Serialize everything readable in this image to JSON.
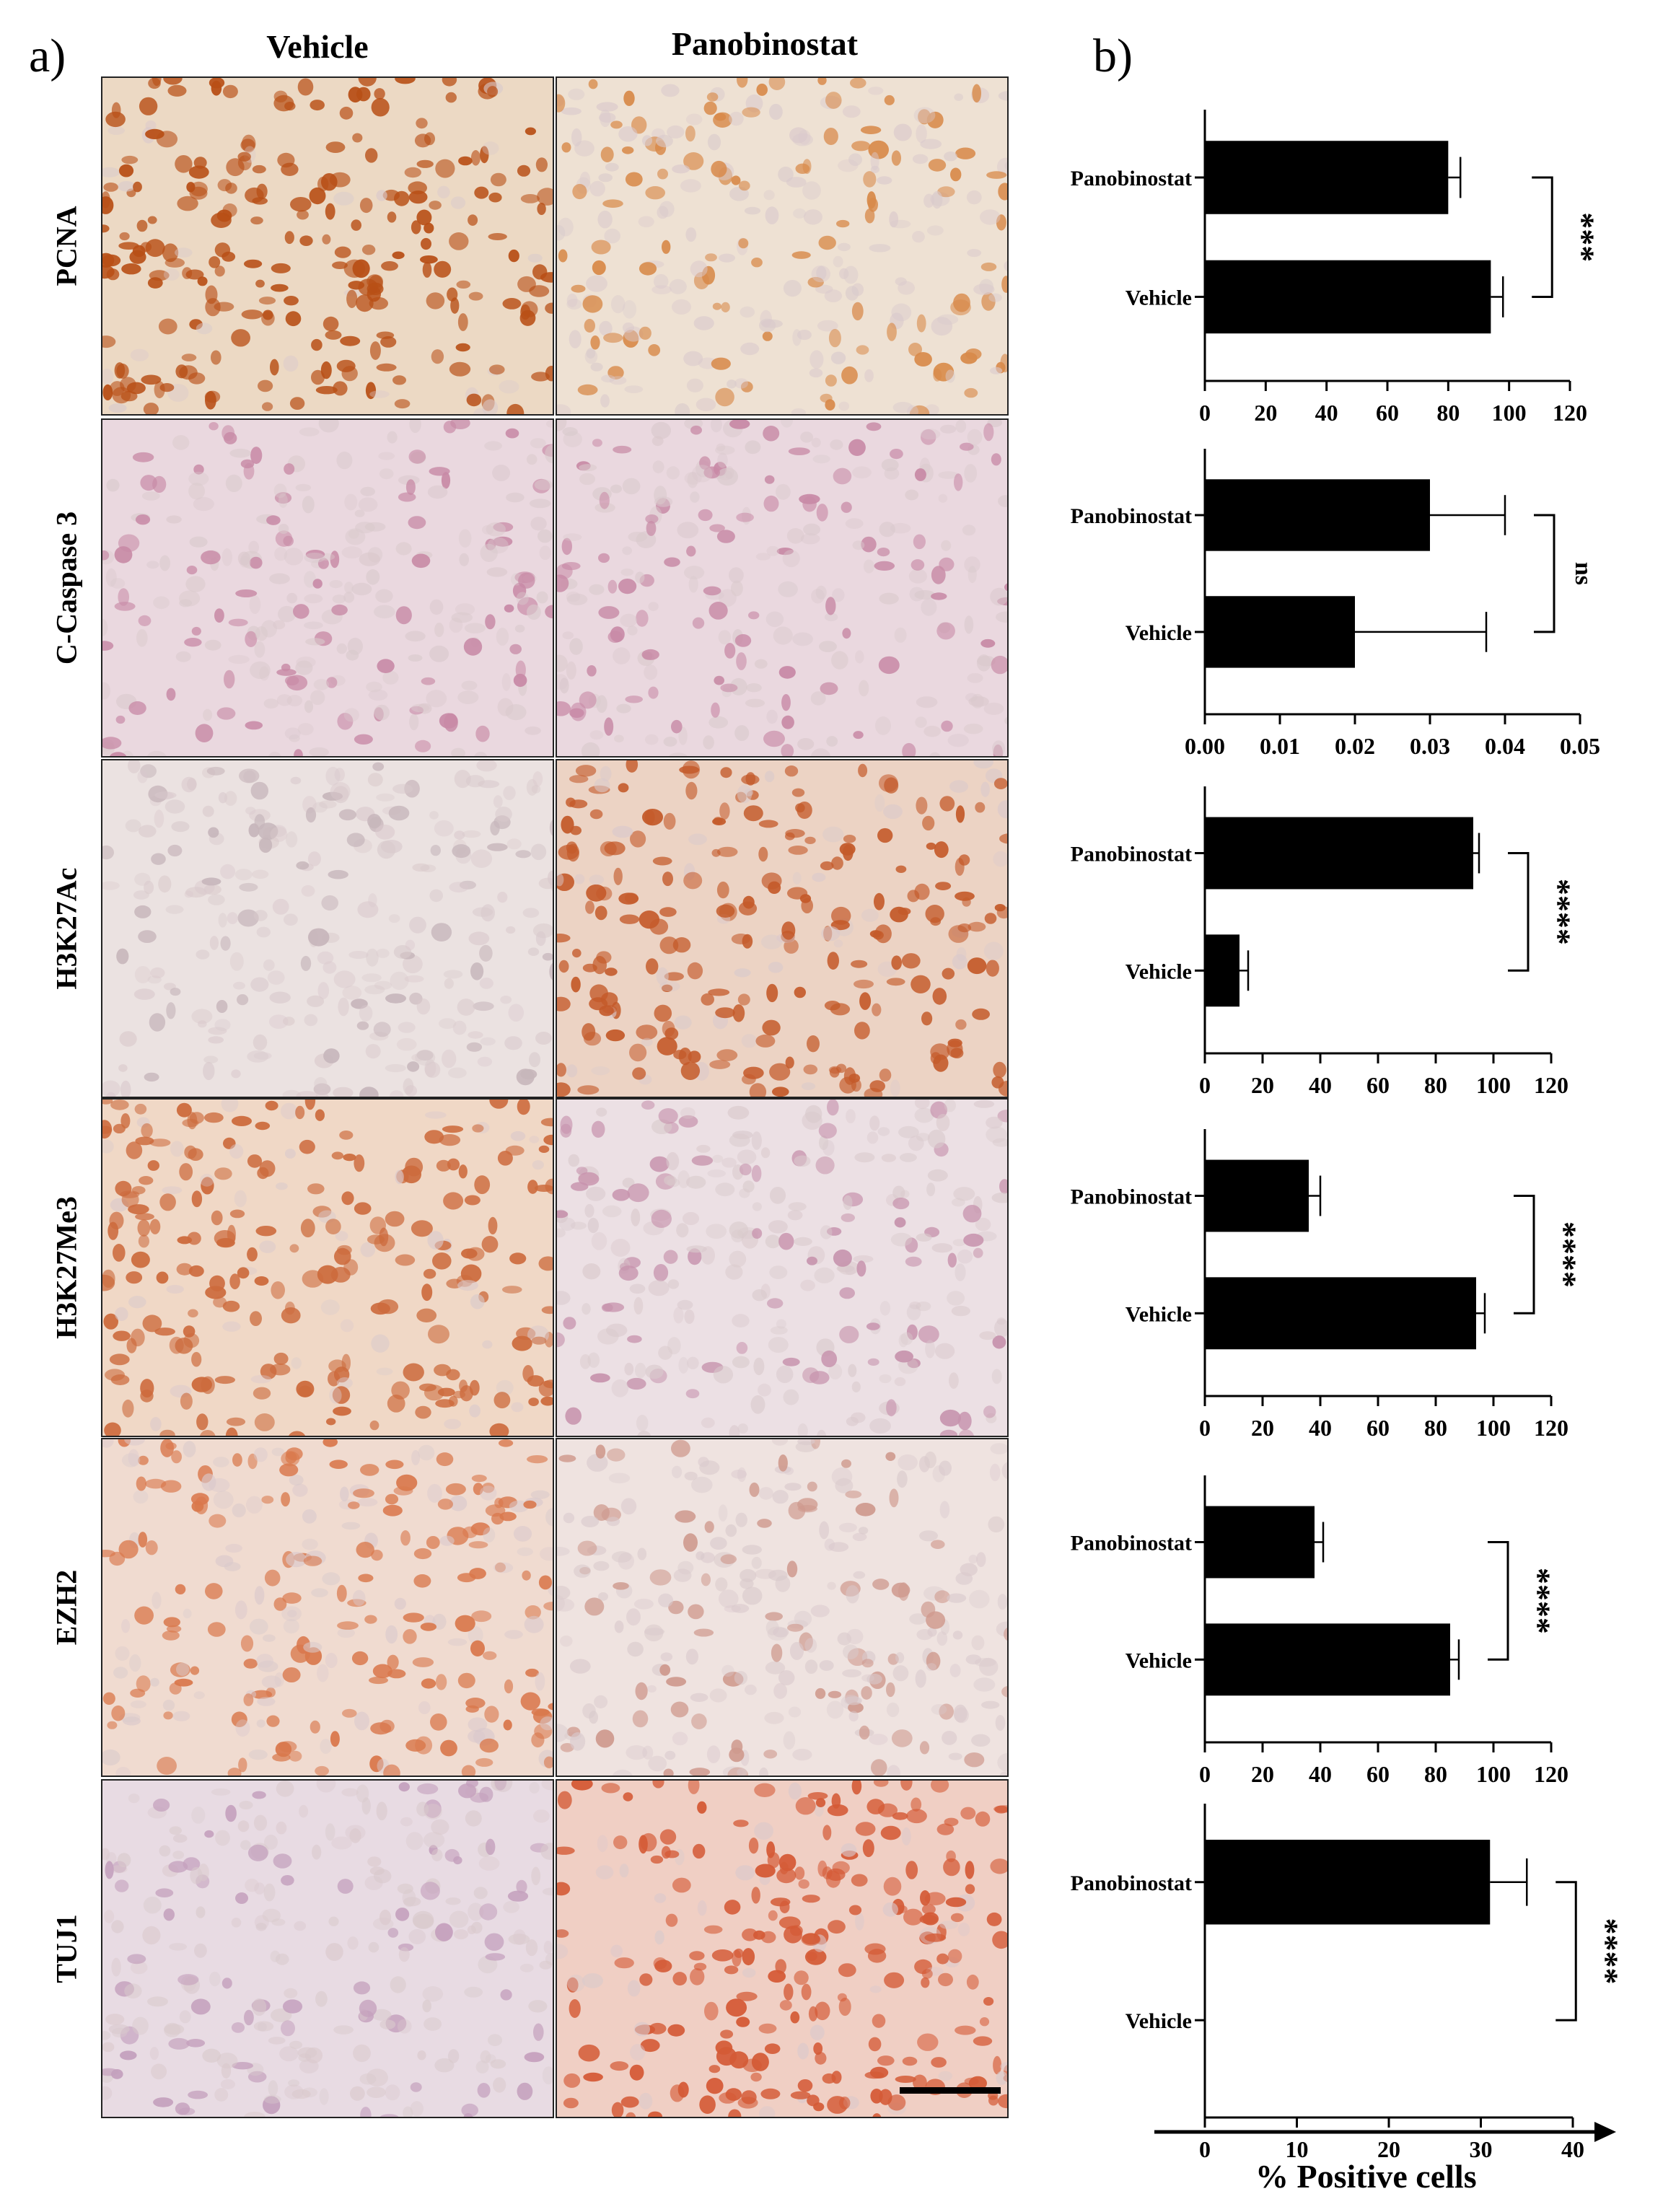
{
  "figure": {
    "panel_a_label": "a)",
    "panel_b_label": "b)",
    "columns": [
      "Vehicle",
      "Panobinostat"
    ],
    "rows": [
      {
        "marker": "PCNA",
        "vehicle_stain": "#b84f16",
        "vehicle_density": 0.9,
        "panobinostat_stain": "#d88a4a",
        "panobinostat_density": 0.45,
        "vehicle_bg": "#ecd9c4",
        "panobinostat_bg": "#eee1d3"
      },
      {
        "marker": "C-Caspase 3",
        "vehicle_stain": "#c88aa6",
        "vehicle_density": 0.35,
        "panobinostat_stain": "#c88aa6",
        "panobinostat_density": 0.35,
        "vehicle_bg": "#ead8df",
        "panobinostat_bg": "#ead8df"
      },
      {
        "marker": "H3K27Ac",
        "vehicle_stain": "#c7b6bb",
        "vehicle_density": 0.25,
        "panobinostat_stain": "#c45a2a",
        "panobinostat_density": 0.8,
        "vehicle_bg": "#ebe2e1",
        "panobinostat_bg": "#ecd3c4"
      },
      {
        "marker": "H3K27Me3",
        "vehicle_stain": "#cc6a3c",
        "vehicle_density": 0.85,
        "panobinostat_stain": "#c793ad",
        "panobinostat_density": 0.3,
        "vehicle_bg": "#f0d8c6",
        "panobinostat_bg": "#ece0e4"
      },
      {
        "marker": "EZH2",
        "vehicle_stain": "#d9784c",
        "vehicle_density": 0.6,
        "panobinostat_stain": "#cf9a8e",
        "panobinostat_density": 0.3,
        "vehicle_bg": "#f0dbd0",
        "panobinostat_bg": "#efe3e0"
      },
      {
        "marker": "TUJ1",
        "vehicle_stain": "#c4a0bd",
        "vehicle_density": 0.3,
        "panobinostat_stain": "#d45a36",
        "panobinostat_density": 0.85,
        "vehicle_bg": "#e8dbe3",
        "panobinostat_bg": "#f0cfc4"
      }
    ],
    "x_axis_title": "% Positive cells"
  },
  "chart_data": [
    {
      "type": "bar",
      "marker": "PCNA",
      "categories": [
        "Panobinostat",
        "Vehicle"
      ],
      "values": [
        80,
        94
      ],
      "errors": [
        4,
        4
      ],
      "xlim": [
        0,
        120
      ],
      "ticks": [
        "0",
        "20",
        "40",
        "60",
        "80",
        "100",
        "120"
      ],
      "significance": "***"
    },
    {
      "type": "bar",
      "marker": "C-Caspase 3",
      "categories": [
        "Panobinostat",
        "Vehicle"
      ],
      "values": [
        0.03,
        0.02
      ],
      "errors": [
        0.01,
        0.0175
      ],
      "xlim": [
        0,
        0.05
      ],
      "ticks": [
        "0.00",
        "0.01",
        "0.02",
        "0.03",
        "0.04",
        "0.05"
      ],
      "significance": "ns"
    },
    {
      "type": "bar",
      "marker": "H3K27Ac",
      "categories": [
        "Panobinostat",
        "Vehicle"
      ],
      "values": [
        93,
        12
      ],
      "errors": [
        2,
        3
      ],
      "xlim": [
        0,
        120
      ],
      "ticks": [
        "0",
        "20",
        "40",
        "60",
        "80",
        "100",
        "120"
      ],
      "significance": "****"
    },
    {
      "type": "bar",
      "marker": "H3K27Me3",
      "categories": [
        "Panobinostat",
        "Vehicle"
      ],
      "values": [
        36,
        94
      ],
      "errors": [
        4,
        3
      ],
      "xlim": [
        0,
        120
      ],
      "ticks": [
        "0",
        "20",
        "40",
        "60",
        "80",
        "100",
        "120"
      ],
      "significance": "****"
    },
    {
      "type": "bar",
      "marker": "EZH2",
      "categories": [
        "Panobinostat",
        "Vehicle"
      ],
      "values": [
        38,
        85
      ],
      "errors": [
        3,
        3
      ],
      "xlim": [
        0,
        120
      ],
      "ticks": [
        "0",
        "20",
        "40",
        "60",
        "80",
        "100",
        "120"
      ],
      "significance": "****"
    },
    {
      "type": "bar",
      "marker": "TUJ1",
      "categories": [
        "Panobinostat",
        "Vehicle"
      ],
      "values": [
        31,
        0
      ],
      "errors": [
        4,
        0
      ],
      "xlim": [
        0,
        40
      ],
      "ticks": [
        "0",
        "10",
        "20",
        "30",
        "40"
      ],
      "significance": "****"
    }
  ]
}
